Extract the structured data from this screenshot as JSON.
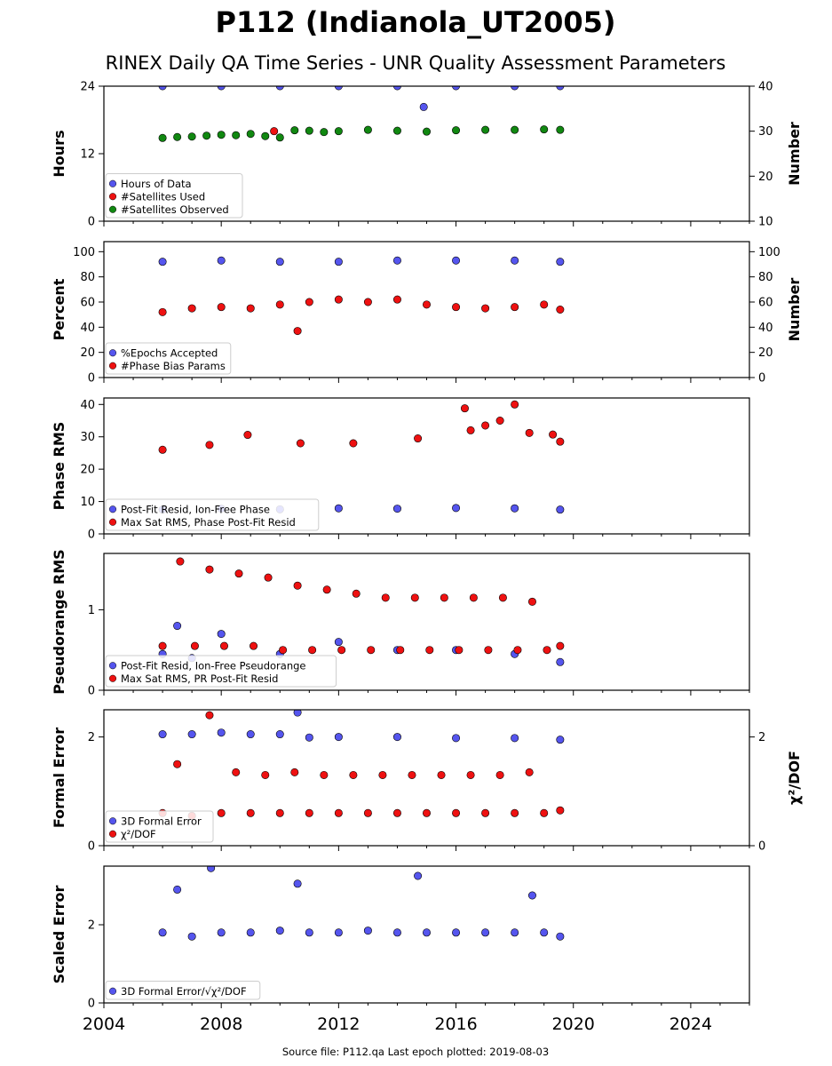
{
  "title": "P112 (Indianola_UT2005)",
  "subtitle": "RINEX Daily QA Time Series - UNR Quality Assessment Parameters",
  "footer": "Source file: P112.qa Last epoch plotted: 2019-08-03",
  "colors": {
    "blue": "#5555ee",
    "red": "#ee1111",
    "green": "#118811",
    "edge": "#000000"
  },
  "chart_data": [
    {
      "type": "scatter",
      "ylabel": "Hours",
      "ylabel_right": "Number",
      "xlim": [
        2004,
        2026
      ],
      "ylim": [
        0,
        24
      ],
      "ylim_right": [
        10,
        40
      ],
      "yticks": [
        "0",
        "12",
        "24"
      ],
      "yticks_right": [
        "10",
        "20",
        "30",
        "40"
      ],
      "legend": [
        "Hours of Data",
        "#Satellites Used",
        "#Satellites Observed"
      ],
      "legend_position": "lower-left",
      "series": [
        {
          "name": "Hours of Data",
          "axis": "left",
          "color": "blue",
          "x": [
            2006.0,
            2008.0,
            2010.0,
            2012.0,
            2014.0,
            2014.9,
            2016.0,
            2018.0,
            2019.55
          ],
          "y": [
            24,
            24,
            24,
            24,
            24,
            20.3,
            24,
            24,
            24
          ]
        },
        {
          "name": "#Satellites Used",
          "axis": "right",
          "color": "red",
          "x": [
            2009.8
          ],
          "y": [
            30.0
          ]
        },
        {
          "name": "#Satellites Observed",
          "axis": "right",
          "color": "green",
          "x": [
            2006.0,
            2006.5,
            2007.0,
            2007.5,
            2008.0,
            2008.5,
            2009.0,
            2009.5,
            2010.0,
            2010.5,
            2011.0,
            2011.5,
            2012.0,
            2013.0,
            2014.0,
            2015.0,
            2016.0,
            2017.0,
            2018.0,
            2019.0,
            2019.55
          ],
          "y": [
            28.5,
            28.7,
            28.8,
            29.0,
            29.2,
            29.1,
            29.4,
            28.9,
            28.6,
            30.2,
            30.1,
            29.8,
            30.0,
            30.3,
            30.1,
            29.9,
            30.2,
            30.3,
            30.3,
            30.4,
            30.3
          ]
        }
      ]
    },
    {
      "type": "scatter",
      "ylabel": "Percent",
      "ylabel_right": "Number",
      "xlim": [
        2004,
        2026
      ],
      "ylim": [
        0,
        108
      ],
      "ylim_right": [
        0,
        108
      ],
      "yticks": [
        "0",
        "20",
        "40",
        "60",
        "80",
        "100"
      ],
      "yticks_right": [
        "0",
        "20",
        "40",
        "60",
        "80",
        "100"
      ],
      "legend": [
        "%Epochs Accepted",
        "#Phase Bias Params"
      ],
      "legend_position": "lower-left",
      "series": [
        {
          "name": "%Epochs Accepted",
          "axis": "left",
          "color": "blue",
          "x": [
            2006.0,
            2008.0,
            2010.0,
            2012.0,
            2014.0,
            2016.0,
            2018.0,
            2019.55
          ],
          "y": [
            92,
            93,
            92,
            92,
            93,
            93,
            93,
            92
          ]
        },
        {
          "name": "#Phase Bias Params",
          "axis": "right",
          "color": "red",
          "x": [
            2006.0,
            2007.0,
            2008.0,
            2009.0,
            2010.0,
            2010.6,
            2011.0,
            2012.0,
            2013.0,
            2014.0,
            2015.0,
            2016.0,
            2017.0,
            2018.0,
            2019.0,
            2019.55
          ],
          "y": [
            52,
            55,
            56,
            55,
            58,
            37,
            60,
            62,
            60,
            62,
            58,
            56,
            55,
            56,
            58,
            54
          ]
        }
      ]
    },
    {
      "type": "scatter",
      "ylabel": "Phase RMS",
      "xlim": [
        2004,
        2026
      ],
      "ylim": [
        0,
        42
      ],
      "yticks": [
        "0",
        "10",
        "20",
        "30",
        "40"
      ],
      "legend": [
        "Post-Fit Resid, Ion-Free Phase",
        "Max Sat RMS, Phase Post-Fit Resid"
      ],
      "legend_position": "lower-left",
      "series": [
        {
          "name": "Post-Fit Resid, Ion-Free Phase",
          "axis": "left",
          "color": "blue",
          "x": [
            2006.0,
            2008.0,
            2010.0,
            2012.0,
            2014.0,
            2016.0,
            2018.0,
            2019.55
          ],
          "y": [
            7.5,
            7.8,
            7.6,
            7.9,
            7.8,
            8.0,
            7.9,
            7.5
          ]
        },
        {
          "name": "Max Sat RMS, Phase Post-Fit Resid",
          "axis": "left",
          "color": "red",
          "x": [
            2006.0,
            2007.6,
            2008.9,
            2010.7,
            2012.5,
            2014.7,
            2016.3,
            2016.5,
            2017.0,
            2017.5,
            2018.0,
            2018.5,
            2019.3,
            2019.55
          ],
          "y": [
            26,
            27.5,
            30.6,
            28,
            28,
            29.5,
            38.8,
            32,
            33.5,
            35,
            40,
            31.2,
            30.7,
            28.5
          ]
        }
      ]
    },
    {
      "type": "scatter",
      "ylabel": "Pseudorange RMS",
      "xlim": [
        2004,
        2026
      ],
      "ylim": [
        0,
        1.7
      ],
      "yticks": [
        "0",
        "1"
      ],
      "legend": [
        "Post-Fit Resid, Ion-Free Pseudorange",
        "Max Sat RMS, PR Post-Fit Resid"
      ],
      "legend_position": "lower-left",
      "series": [
        {
          "name": "Post-Fit Resid, Ion-Free Pseudorange",
          "axis": "left",
          "color": "blue",
          "x": [
            2006.0,
            2006.5,
            2007.0,
            2008.0,
            2010.0,
            2012.0,
            2014.0,
            2016.0,
            2018.0,
            2019.55
          ],
          "y": [
            0.45,
            0.8,
            0.4,
            0.7,
            0.45,
            0.6,
            0.5,
            0.5,
            0.45,
            0.35
          ]
        },
        {
          "name": "Max Sat RMS, PR Post-Fit Resid",
          "axis": "left",
          "color": "red",
          "x": [
            2006.0,
            2006.6,
            2007.1,
            2007.6,
            2008.1,
            2008.6,
            2009.1,
            2009.6,
            2010.1,
            2010.6,
            2011.1,
            2011.6,
            2012.1,
            2012.6,
            2013.1,
            2013.6,
            2014.1,
            2014.6,
            2015.1,
            2015.6,
            2016.1,
            2016.6,
            2017.1,
            2017.6,
            2018.1,
            2018.6,
            2019.1,
            2019.55
          ],
          "y": [
            0.55,
            1.6,
            0.55,
            1.5,
            0.55,
            1.45,
            0.55,
            1.4,
            0.5,
            1.3,
            0.5,
            1.25,
            0.5,
            1.2,
            0.5,
            1.15,
            0.5,
            1.15,
            0.5,
            1.15,
            0.5,
            1.15,
            0.5,
            1.15,
            0.5,
            1.1,
            0.5,
            0.55
          ]
        }
      ]
    },
    {
      "type": "scatter",
      "ylabel": "Formal Error",
      "ylabel_right": "χ²/DOF",
      "xlim": [
        2004,
        2026
      ],
      "ylim": [
        0,
        2.5
      ],
      "ylim_right": [
        0,
        2.5
      ],
      "yticks": [
        "0",
        "2"
      ],
      "yticks_right": [
        "0",
        "2"
      ],
      "legend": [
        "3D Formal Error",
        "χ²/DOF"
      ],
      "legend_position": "lower-left",
      "series": [
        {
          "name": "3D Formal Error",
          "axis": "left",
          "color": "blue",
          "x": [
            2006.0,
            2007.0,
            2008.0,
            2009.0,
            2010.0,
            2010.6,
            2011.0,
            2012.0,
            2014.0,
            2016.0,
            2018.0,
            2019.55
          ],
          "y": [
            2.05,
            2.05,
            2.08,
            2.05,
            2.05,
            2.45,
            1.99,
            2.0,
            2.0,
            1.98,
            1.98,
            1.95
          ]
        },
        {
          "name": "χ²/DOF",
          "axis": "right",
          "color": "red",
          "x": [
            2006.0,
            2006.5,
            2007.0,
            2007.6,
            2008.0,
            2008.5,
            2009.0,
            2009.5,
            2010.0,
            2010.5,
            2011.0,
            2011.5,
            2012.0,
            2012.5,
            2013.0,
            2013.5,
            2014.0,
            2014.5,
            2015.0,
            2015.5,
            2016.0,
            2016.5,
            2017.0,
            2017.5,
            2018.0,
            2018.5,
            2019.0,
            2019.55
          ],
          "y": [
            0.6,
            1.5,
            0.55,
            2.4,
            0.6,
            1.35,
            0.6,
            1.3,
            0.6,
            1.35,
            0.6,
            1.3,
            0.6,
            1.3,
            0.6,
            1.3,
            0.6,
            1.3,
            0.6,
            1.3,
            0.6,
            1.3,
            0.6,
            1.3,
            0.6,
            1.35,
            0.6,
            0.65
          ]
        }
      ]
    },
    {
      "type": "scatter",
      "ylabel": "Scaled Error",
      "xlim": [
        2004,
        2026
      ],
      "ylim": [
        0,
        3.5
      ],
      "yticks": [
        "0",
        "2"
      ],
      "legend": [
        "3D Formal Error/√χ²/DOF"
      ],
      "legend_position": "lower-left",
      "series": [
        {
          "name": "3D Formal Error/√χ²/DOF",
          "axis": "left",
          "color": "blue",
          "x": [
            2006.0,
            2006.5,
            2007.0,
            2007.65,
            2008.0,
            2009.0,
            2010.0,
            2010.6,
            2011.0,
            2012.0,
            2013.0,
            2014.0,
            2014.7,
            2015.0,
            2016.0,
            2017.0,
            2018.0,
            2018.6,
            2019.0,
            2019.55
          ],
          "y": [
            1.8,
            2.9,
            1.7,
            3.45,
            1.8,
            1.8,
            1.85,
            3.05,
            1.8,
            1.8,
            1.85,
            1.8,
            3.25,
            1.8,
            1.8,
            1.8,
            1.8,
            2.75,
            1.8,
            1.7
          ]
        }
      ]
    }
  ],
  "xaxis": {
    "ticks": [
      "2004",
      "2008",
      "2012",
      "2016",
      "2020",
      "2024"
    ]
  }
}
